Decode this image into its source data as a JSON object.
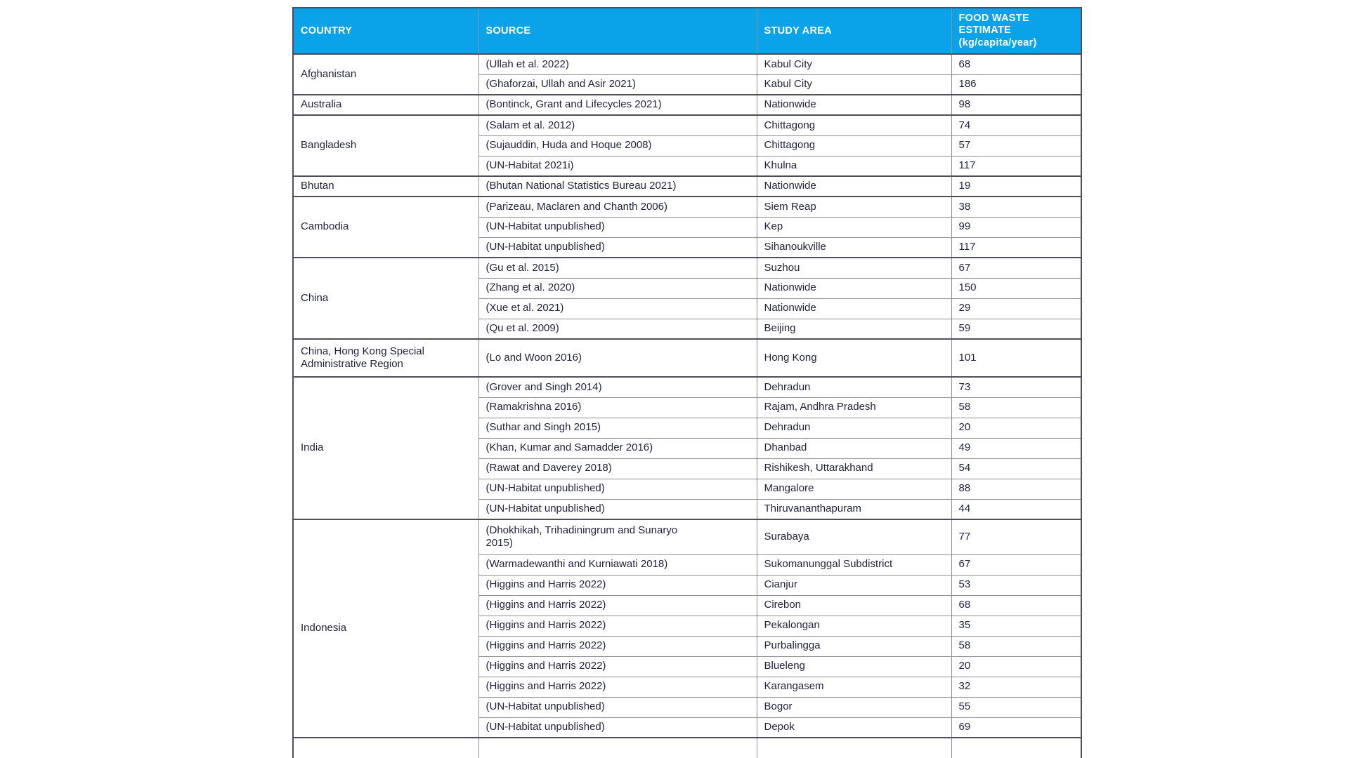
{
  "colors": {
    "page_bg": "#ffffff",
    "header_bg": "#0aa2e8",
    "header_text": "#ffffff",
    "body_text": "#23233c",
    "grid_line": "#8f8f99",
    "group_line": "#4f4f5b"
  },
  "table": {
    "header": {
      "country": "COUNTRY",
      "source": "SOURCE",
      "study_area": "STUDY AREA",
      "estimate_title": "FOOD WASTE ESTIMATE",
      "estimate_unit": "(kg/capita/year)"
    },
    "groups": [
      {
        "country": "Afghanistan",
        "rows": [
          {
            "source": "(Ullah et al. 2022)",
            "area": "Kabul City",
            "value": "68"
          },
          {
            "source": "(Ghaforzai, Ullah and Asir 2021)",
            "area": "Kabul City",
            "value": "186"
          }
        ]
      },
      {
        "country": "Australia",
        "rows": [
          {
            "source": "(Bontinck, Grant and Lifecycles 2021)",
            "area": "Nationwide",
            "value": "98"
          }
        ]
      },
      {
        "country": "Bangladesh",
        "rows": [
          {
            "source": "(Salam et al. 2012)",
            "area": "Chittagong",
            "value": "74"
          },
          {
            "source": "(Sujauddin, Huda and Hoque 2008)",
            "area": "Chittagong",
            "value": "57"
          },
          {
            "source": "(UN-Habitat 2021i)",
            "area": "Khulna",
            "value": "117"
          }
        ]
      },
      {
        "country": "Bhutan",
        "rows": [
          {
            "source": "(Bhutan National Statistics Bureau 2021)",
            "area": "Nationwide",
            "value": "19"
          }
        ]
      },
      {
        "country": "Cambodia",
        "rows": [
          {
            "source": "(Parizeau, Maclaren and Chanth 2006)",
            "area": "Siem Reap",
            "value": "38"
          },
          {
            "source": "(UN-Habitat unpublished)",
            "area": "Kep",
            "value": "99"
          },
          {
            "source": "(UN-Habitat unpublished)",
            "area": "Sihanoukville",
            "value": "117"
          }
        ]
      },
      {
        "country": "China",
        "rows": [
          {
            "source": "(Gu et al. 2015)",
            "area": "Suzhou",
            "value": "67"
          },
          {
            "source": "(Zhang et al. 2020)",
            "area": "Nationwide",
            "value": "150"
          },
          {
            "source": "(Xue et al. 2021)",
            "area": "Nationwide",
            "value": "29"
          },
          {
            "source": "(Qu et al. 2009)",
            "area": "Beijing",
            "value": "59"
          }
        ]
      },
      {
        "country": "China, Hong Kong Special Administrative Region",
        "rows": [
          {
            "source": "(Lo and Woon 2016)",
            "area": "Hong Kong",
            "value": "101",
            "h": 54
          }
        ]
      },
      {
        "country": "India",
        "rows": [
          {
            "source": "(Grover and Singh 2014)",
            "area": "Dehradun",
            "value": "73"
          },
          {
            "source": "(Ramakrishna 2016)",
            "area": "Rajam, Andhra Pradesh",
            "value": "58"
          },
          {
            "source": "(Suthar and Singh 2015)",
            "area": "Dehradun",
            "value": "20"
          },
          {
            "source": "(Khan, Kumar and Samadder 2016)",
            "area": "Dhanbad",
            "value": "49"
          },
          {
            "source": "(Rawat and Daverey 2018)",
            "area": "Rishikesh, Uttarakhand",
            "value": "54"
          },
          {
            "source": "(UN-Habitat unpublished)",
            "area": "Mangalore",
            "value": "88"
          },
          {
            "source": "(UN-Habitat unpublished)",
            "area": "Thiruvananthapuram",
            "value": "44"
          }
        ]
      },
      {
        "country": "Indonesia",
        "rows": [
          {
            "source": "(Dhokhikah, Trihadiningrum and Sunaryo 2015)",
            "area": "Surabaya",
            "value": "77",
            "h": 50,
            "wrap": true
          },
          {
            "source": "(Warmadewanthi and Kurniawati 2018)",
            "area": "Sukomanunggal Subdistrict",
            "value": "67"
          },
          {
            "source": "(Higgins and Harris 2022)",
            "area": "Cianjur",
            "value": "53"
          },
          {
            "source": "(Higgins and Harris 2022)",
            "area": "Cirebon",
            "value": "68"
          },
          {
            "source": "(Higgins and Harris 2022)",
            "area": "Pekalongan",
            "value": "35"
          },
          {
            "source": "(Higgins and Harris 2022)",
            "area": "Purbalingga",
            "value": "58"
          },
          {
            "source": "(Higgins and Harris 2022)",
            "area": "Blueleng",
            "value": "20"
          },
          {
            "source": "(Higgins and Harris 2022)",
            "area": "Karangasem",
            "value": "32"
          },
          {
            "source": "(UN-Habitat unpublished)",
            "area": "Bogor",
            "value": "55"
          },
          {
            "source": "(UN-Habitat unpublished)",
            "area": "Depok",
            "value": "69"
          }
        ]
      }
    ],
    "truncated_next_group": true
  }
}
